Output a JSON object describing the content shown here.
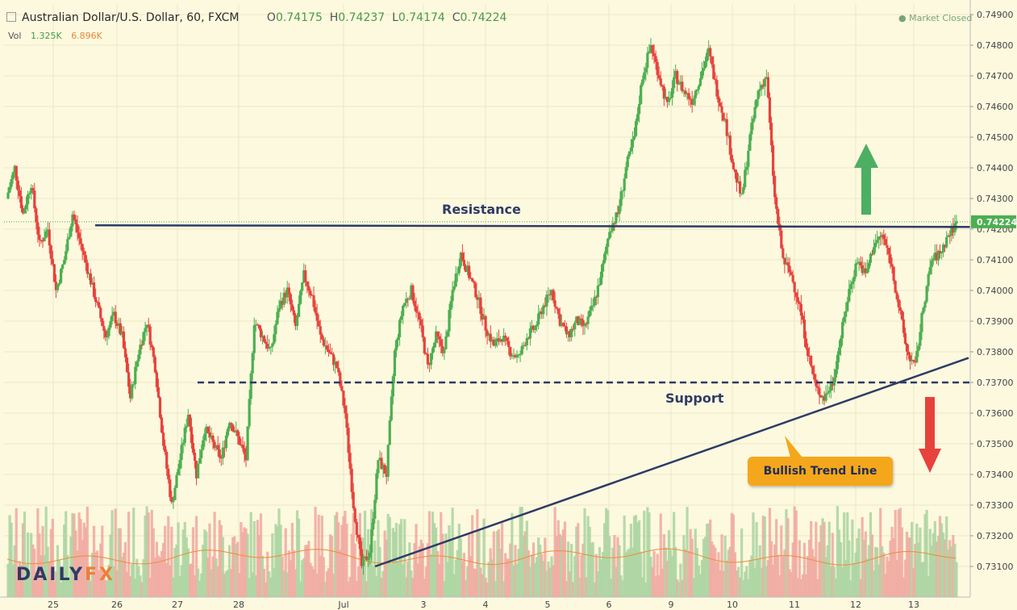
{
  "header": {
    "title": "Australian Dollar/U.S. Dollar, 60, FXCM",
    "open_label": "O",
    "open": "0.74175",
    "high_label": "H",
    "high": "0.74237",
    "low_label": "L",
    "low": "0.74174",
    "close_label": "C",
    "close": "0.74224"
  },
  "volume": {
    "label": "Vol",
    "value1": "1.325K",
    "value2": "6.896K"
  },
  "status": "Market Closed",
  "brand": {
    "part1": "DAILY",
    "part2": "FX"
  },
  "colors": {
    "up": "#4caf50",
    "down": "#e8423c",
    "background": "#fcf9df",
    "line": "#2e3b66",
    "badge": "#f5a71c"
  },
  "annotations": {
    "resistance": "Resistance",
    "support": "Support",
    "trendline": "Bullish Trend Line"
  },
  "chart_data": {
    "type": "candlestick",
    "y_ticks": [
      "0.74900",
      "0.74800",
      "0.74700",
      "0.74600",
      "0.74500",
      "0.74400",
      "0.74300",
      "0.74200",
      "0.74100",
      "0.74000",
      "0.73900",
      "0.73800",
      "0.73700",
      "0.73600",
      "0.73500",
      "0.73400",
      "0.73300",
      "0.73200",
      "0.73100"
    ],
    "x_ticks": [
      "25",
      "26",
      "27",
      "28",
      "Jul",
      "3",
      "4",
      "5",
      "6",
      "9",
      "10",
      "11",
      "12",
      "13"
    ],
    "ylim": [
      0.7305,
      0.7492
    ],
    "last_price": "0.74224",
    "resistance_level": 0.7421,
    "support_level": 0.737,
    "trend_line": {
      "from_price": 0.731,
      "to_price": 0.7378
    },
    "price_path": [
      0.743,
      0.744,
      0.7425,
      0.7435,
      0.7415,
      0.742,
      0.74,
      0.741,
      0.7425,
      0.7415,
      0.7405,
      0.7395,
      0.7385,
      0.7392,
      0.7385,
      0.7365,
      0.738,
      0.739,
      0.7375,
      0.735,
      0.733,
      0.7345,
      0.736,
      0.734,
      0.7355,
      0.735,
      0.7345,
      0.7358,
      0.7352,
      0.7345,
      0.739,
      0.7385,
      0.738,
      0.7395,
      0.74,
      0.7388,
      0.7405,
      0.7398,
      0.7385,
      0.738,
      0.7375,
      0.736,
      0.733,
      0.731,
      0.7315,
      0.7345,
      0.734,
      0.738,
      0.7395,
      0.74,
      0.739,
      0.7375,
      0.7385,
      0.738,
      0.74,
      0.7412,
      0.7405,
      0.7398,
      0.7388,
      0.7382,
      0.7385,
      0.738,
      0.7378,
      0.7385,
      0.7388,
      0.7395,
      0.74,
      0.739,
      0.7385,
      0.739,
      0.7388,
      0.7395,
      0.7405,
      0.742,
      0.7425,
      0.744,
      0.745,
      0.747,
      0.748,
      0.747,
      0.746,
      0.747,
      0.7465,
      0.7462,
      0.747,
      0.7478,
      0.7465,
      0.7455,
      0.744,
      0.743,
      0.745,
      0.7465,
      0.747,
      0.743,
      0.741,
      0.7405,
      0.7395,
      0.738,
      0.7368,
      0.7365,
      0.737,
      0.7385,
      0.74,
      0.741,
      0.7405,
      0.7415,
      0.7418,
      0.741,
      0.7395,
      0.738,
      0.7375,
      0.7395,
      0.741,
      0.7412,
      0.7418,
      0.7422
    ]
  }
}
